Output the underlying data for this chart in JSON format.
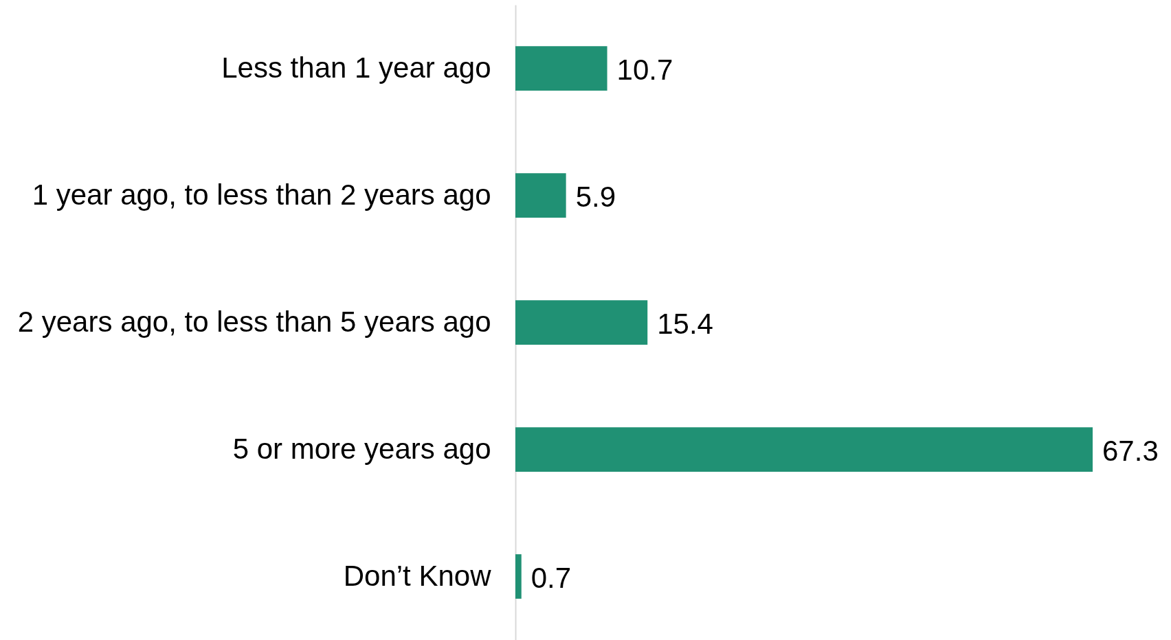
{
  "chart_data": {
    "type": "bar",
    "orientation": "horizontal",
    "categories": [
      "Less than 1 year ago",
      "1 year ago, to less than 2 years ago",
      "2 years ago, to less than 5 years ago",
      "5 or more years ago",
      "Don’t Know"
    ],
    "values": [
      10.7,
      5.9,
      15.4,
      67.3,
      0.7
    ],
    "color": "#209174",
    "data_labels": true,
    "grid": false
  }
}
